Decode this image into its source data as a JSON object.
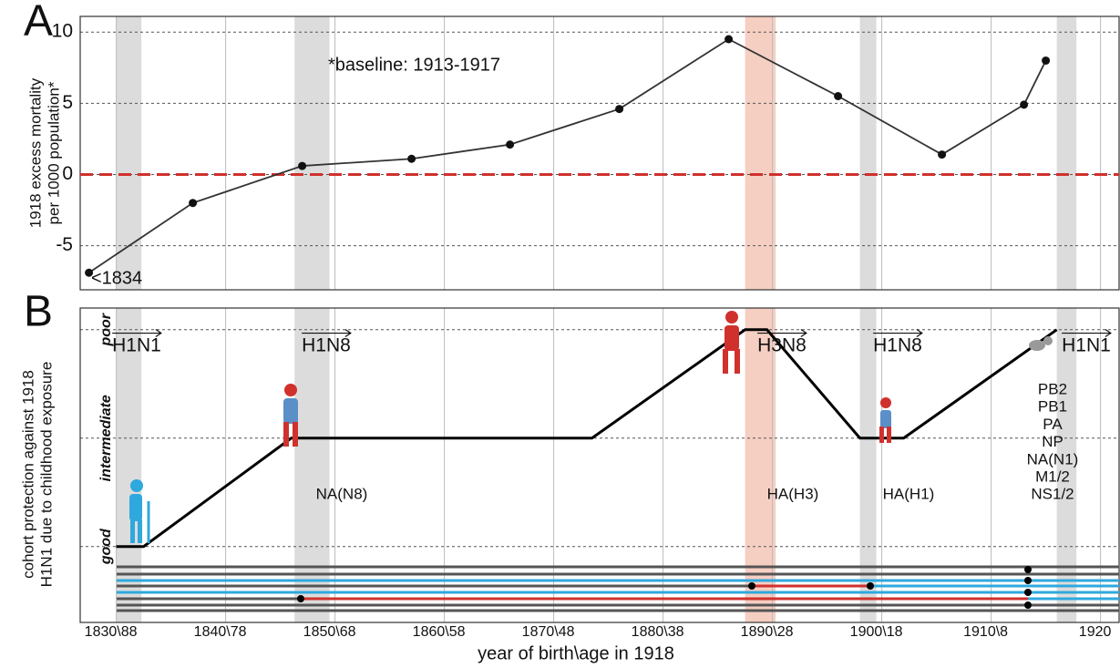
{
  "chart_data": [
    {
      "type": "line",
      "panel_label": "A",
      "ylabel": [
        "1918 excess mortality",
        "per 1000 population*"
      ],
      "x": [
        1827.5,
        1837,
        1847,
        1857,
        1866,
        1876,
        1886,
        1896,
        1905.5,
        1913,
        1915
      ],
      "values": [
        -6.9,
        -2,
        0.6,
        1.1,
        2.1,
        4.6,
        9.5,
        5.5,
        1.4,
        4.9,
        8.0
      ],
      "color": "#333333",
      "xlim": [
        1826.7,
        1921.7
      ],
      "ylim": [
        -8.1,
        11.1
      ],
      "xticks": [
        1830,
        1840,
        1850,
        1860,
        1870,
        1880,
        1890,
        1900,
        1910,
        1920
      ],
      "yticks": [
        -5,
        0,
        5,
        10
      ],
      "grid": true,
      "reference_line": {
        "value": 0,
        "color": "#d0312d"
      },
      "bands": [
        {
          "range": [
            1830,
            1832.3
          ],
          "color": "#dcdcdc"
        },
        {
          "range": [
            1846.3,
            1849.5
          ],
          "color": "#dcdcdc"
        },
        {
          "range": [
            1887.5,
            1890.3
          ],
          "color": "#f5cfc2"
        },
        {
          "range": [
            1898,
            1899.5
          ],
          "color": "#dcdcdc"
        },
        {
          "range": [
            1916,
            1917.8
          ],
          "color": "#dcdcdc"
        }
      ],
      "annotations": [
        "*baseline: 1913-1917",
        "<1834"
      ]
    },
    {
      "type": "step",
      "panel_label": "B",
      "ylabel": [
        "cohort protection against 1918",
        "H1N1 due to childhood exposure"
      ],
      "xlabel": "year of birth\\age in 1918",
      "x": [
        1830,
        1832.5,
        1846,
        1873.5,
        1887.5,
        1889.5,
        1898,
        1902,
        1916
      ],
      "values": [
        0,
        0,
        1,
        1,
        2,
        2,
        1,
        1,
        2
      ],
      "color": "#000000",
      "xlim": [
        1826.7,
        1921.7
      ],
      "ylim": [
        -0.7,
        2.2
      ],
      "xticks": [
        {
          "value": 1830,
          "label": "1830\\88"
        },
        {
          "value": 1840,
          "label": "1840\\78"
        },
        {
          "value": 1850,
          "label": "1850\\68"
        },
        {
          "value": 1860,
          "label": "1860\\58"
        },
        {
          "value": 1870,
          "label": "1870\\48"
        },
        {
          "value": 1880,
          "label": "1880\\38"
        },
        {
          "value": 1890,
          "label": "1890\\28"
        },
        {
          "value": 1900,
          "label": "1900\\18"
        },
        {
          "value": 1910,
          "label": "1910\\8"
        },
        {
          "value": 1920,
          "label": "1920"
        }
      ],
      "yticks": [
        {
          "value": 0,
          "label": "good"
        },
        {
          "value": 1,
          "label": "intermediate"
        },
        {
          "value": 2,
          "label": "poor"
        }
      ],
      "grid": true,
      "bands": [
        {
          "range": [
            1830,
            1832.3
          ],
          "color": "#dcdcdc"
        },
        {
          "range": [
            1846.3,
            1849.5
          ],
          "color": "#dcdcdc"
        },
        {
          "range": [
            1887.5,
            1890.3
          ],
          "color": "#f5cfc2"
        },
        {
          "range": [
            1898,
            1899.5
          ],
          "color": "#dcdcdc"
        },
        {
          "range": [
            1916,
            1917.8
          ],
          "color": "#dcdcdc"
        }
      ],
      "subtypes": [
        "H1N1",
        "H1N8",
        "H3N8",
        "H1N8",
        "H1N1"
      ],
      "genes": [
        "NA(N8)",
        "HA(H3)",
        "HA(H1)"
      ],
      "gene_stack": [
        "PB2",
        "PB1",
        "PA",
        "NP",
        "NA(N1)",
        "M1/2",
        "NS1/2"
      ]
    }
  ]
}
